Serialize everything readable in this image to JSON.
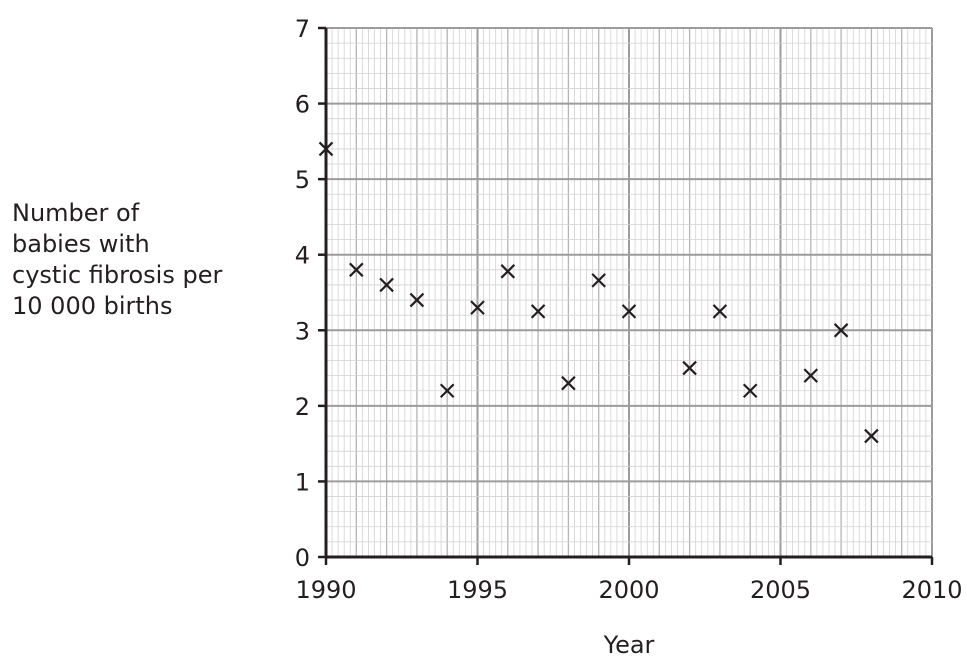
{
  "chart_data": {
    "type": "scatter",
    "title": "",
    "xlabel": "Year",
    "ylabel_lines": [
      "Number of",
      "babies with",
      "cystic fibrosis per",
      "10 000 births"
    ],
    "xlim": [
      1990,
      2010
    ],
    "ylim": [
      0,
      7
    ],
    "x_ticks": [
      1990,
      1995,
      2000,
      2005,
      2010
    ],
    "y_ticks": [
      0,
      1,
      2,
      3,
      4,
      5,
      6,
      7
    ],
    "grid": true,
    "marker": "x",
    "points": [
      {
        "x": 1990,
        "y": 5.4
      },
      {
        "x": 1991,
        "y": 3.8
      },
      {
        "x": 1992,
        "y": 3.6
      },
      {
        "x": 1993,
        "y": 3.4
      },
      {
        "x": 1994,
        "y": 2.2
      },
      {
        "x": 1995,
        "y": 3.3
      },
      {
        "x": 1996,
        "y": 3.78
      },
      {
        "x": 1997,
        "y": 3.25
      },
      {
        "x": 1998,
        "y": 2.3
      },
      {
        "x": 1999,
        "y": 3.66
      },
      {
        "x": 2000,
        "y": 3.25
      },
      {
        "x": 2002,
        "y": 2.5
      },
      {
        "x": 2003,
        "y": 3.25
      },
      {
        "x": 2004,
        "y": 2.2
      },
      {
        "x": 2006,
        "y": 2.4
      },
      {
        "x": 2007,
        "y": 3.0
      },
      {
        "x": 2008,
        "y": 1.6
      }
    ]
  }
}
